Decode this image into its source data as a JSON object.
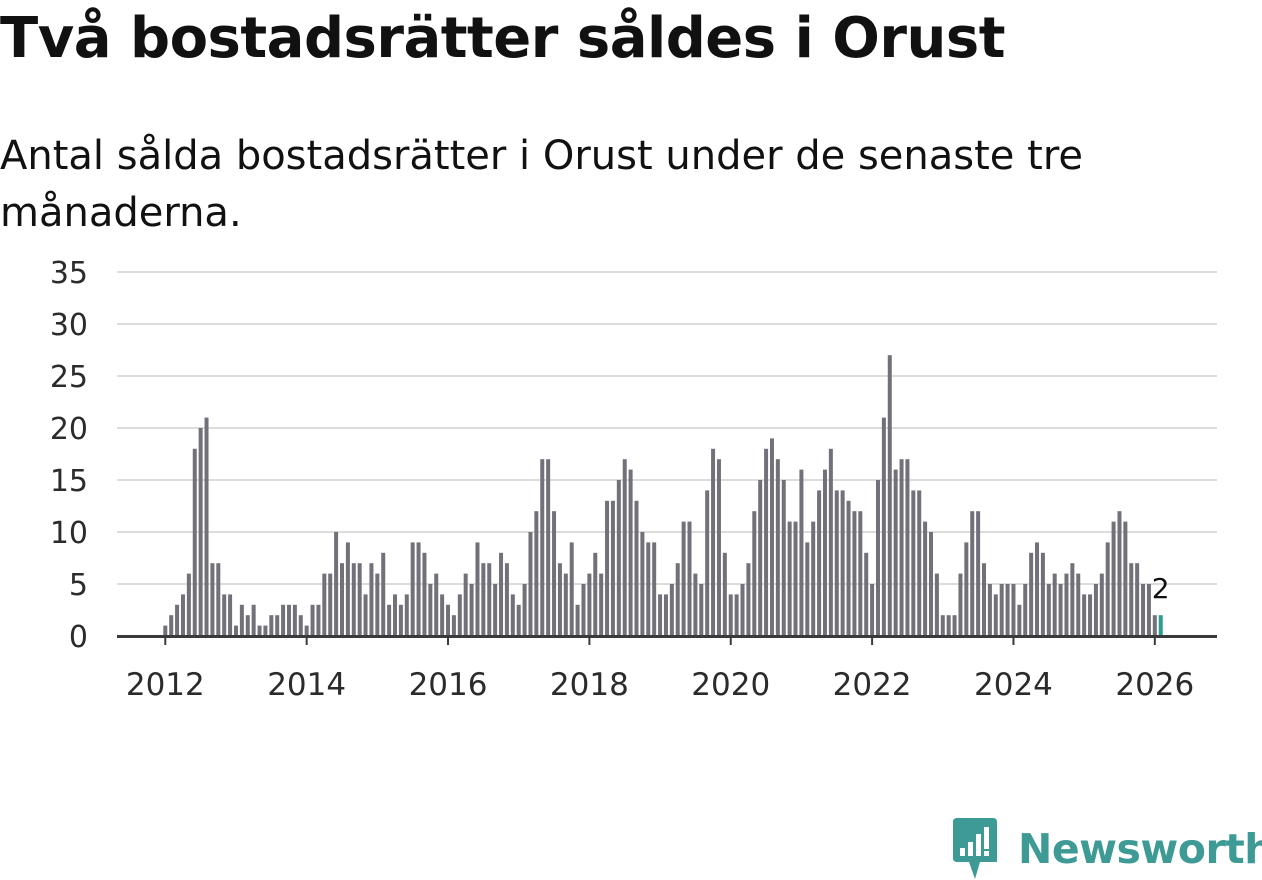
{
  "header": {
    "title": "Två bostadsrätter såldes i Orust",
    "subtitle": "Antal sålda bostadsrätter i Orust under de senaste tre månaderna."
  },
  "brand": {
    "name": "Newsworthy"
  },
  "colors": {
    "bar": "#727078",
    "highlight": "#2a9d8f",
    "grid": "#dcdcdc",
    "axis": "#3a3a3a",
    "brand": "#3d9a94"
  },
  "chart_data": {
    "type": "bar",
    "title": "Två bostadsrätter såldes i Orust",
    "xlabel": "",
    "ylabel": "",
    "ylim": [
      0,
      35
    ],
    "yticks": [
      "0",
      "5",
      "10",
      "15",
      "20",
      "25",
      "30",
      "35"
    ],
    "xticks": [
      "2012",
      "2014",
      "2016",
      "2018",
      "2020",
      "2022",
      "2024",
      "2026"
    ],
    "start": "2012-01",
    "frequency": "monthly",
    "values": [
      1,
      2,
      3,
      4,
      6,
      18,
      20,
      21,
      7,
      7,
      4,
      4,
      1,
      3,
      2,
      3,
      1,
      1,
      2,
      2,
      3,
      3,
      3,
      2,
      1,
      3,
      3,
      6,
      6,
      10,
      7,
      9,
      7,
      7,
      4,
      7,
      6,
      8,
      3,
      4,
      3,
      4,
      9,
      9,
      8,
      5,
      6,
      4,
      3,
      2,
      4,
      6,
      5,
      9,
      7,
      7,
      5,
      8,
      7,
      4,
      3,
      5,
      10,
      12,
      17,
      17,
      12,
      7,
      6,
      9,
      3,
      5,
      6,
      8,
      6,
      13,
      13,
      15,
      17,
      16,
      13,
      10,
      9,
      9,
      4,
      4,
      5,
      7,
      11,
      11,
      6,
      5,
      14,
      18,
      17,
      8,
      4,
      4,
      5,
      7,
      12,
      15,
      18,
      19,
      17,
      15,
      11,
      11,
      16,
      9,
      11,
      14,
      16,
      18,
      14,
      14,
      13,
      12,
      12,
      8,
      5,
      15,
      21,
      27,
      16,
      17,
      17,
      14,
      14,
      11,
      10,
      6,
      2,
      2,
      2,
      6,
      9,
      12,
      12,
      7,
      5,
      4,
      5,
      5,
      5,
      3,
      5,
      8,
      9,
      8,
      5,
      6,
      5,
      6,
      7,
      6,
      4,
      4,
      5,
      6,
      9,
      11,
      12,
      11,
      7,
      7,
      5,
      5,
      2,
      2
    ],
    "highlight_index": 169,
    "annotation": {
      "label": "2",
      "value": 2
    }
  }
}
